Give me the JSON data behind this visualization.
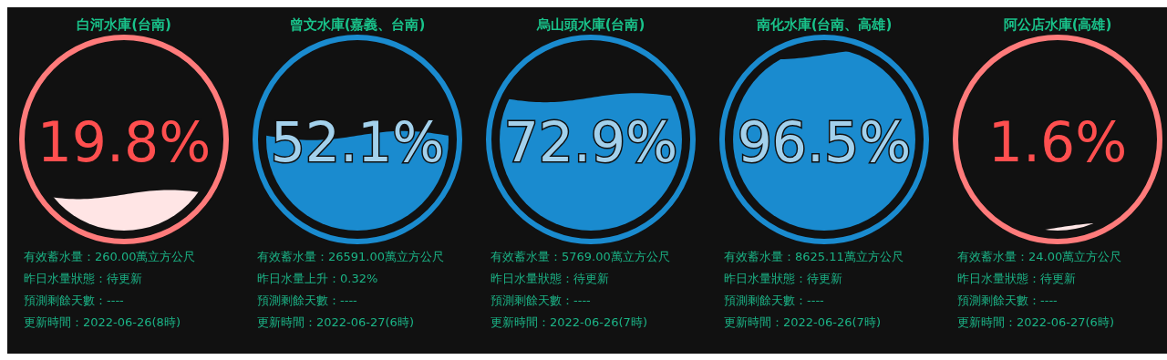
{
  "chart_data": [
    {
      "type": "other",
      "title": "白河水庫(台南)",
      "values": [
        19.8
      ],
      "colors": [
        "#ff7b7b"
      ],
      "data_labels": true,
      "value_labels": [
        "19.8%"
      ],
      "annotations": [
        "有效蓄水量：260.00萬立方公尺",
        "昨日水量狀態：待更新",
        "預測剩餘天數：----",
        "更新時間：2022-06-26(8時)"
      ]
    },
    {
      "type": "other",
      "title": "曾文水庫(嘉義、台南)",
      "values": [
        52.1
      ],
      "colors": [
        "#1a8bcf"
      ],
      "data_labels": true,
      "value_labels": [
        "52.1%"
      ],
      "annotations": [
        "有效蓄水量：26591.00萬立方公尺",
        "昨日水量上升：0.32%",
        "預測剩餘天數：----",
        "更新時間：2022-06-27(6時)"
      ]
    },
    {
      "type": "other",
      "title": "烏山頭水庫(台南)",
      "values": [
        72.9
      ],
      "colors": [
        "#1a8bcf"
      ],
      "data_labels": true,
      "value_labels": [
        "72.9%"
      ],
      "annotations": [
        "有效蓄水量：5769.00萬立方公尺",
        "昨日水量狀態：待更新",
        "預測剩餘天數：----",
        "更新時間：2022-06-26(7時)"
      ]
    },
    {
      "type": "other",
      "title": "南化水庫(台南、高雄)",
      "values": [
        96.5
      ],
      "colors": [
        "#1a8bcf"
      ],
      "data_labels": true,
      "value_labels": [
        "96.5%"
      ],
      "annotations": [
        "有效蓄水量：8625.11萬立方公尺",
        "昨日水量狀態：待更新",
        "預測剩餘天數：----",
        "更新時間：2022-06-26(7時)"
      ]
    },
    {
      "type": "other",
      "title": "阿公店水庫(高雄)",
      "values": [
        1.6
      ],
      "colors": [
        "#ff7b7b"
      ],
      "data_labels": true,
      "value_labels": [
        "1.6%"
      ],
      "annotations": [
        "有效蓄水量：24.00萬立方公尺",
        "昨日水量狀態：待更新",
        "預測剩餘天數：----",
        "更新時間：2022-06-27(6時)"
      ]
    }
  ]
}
